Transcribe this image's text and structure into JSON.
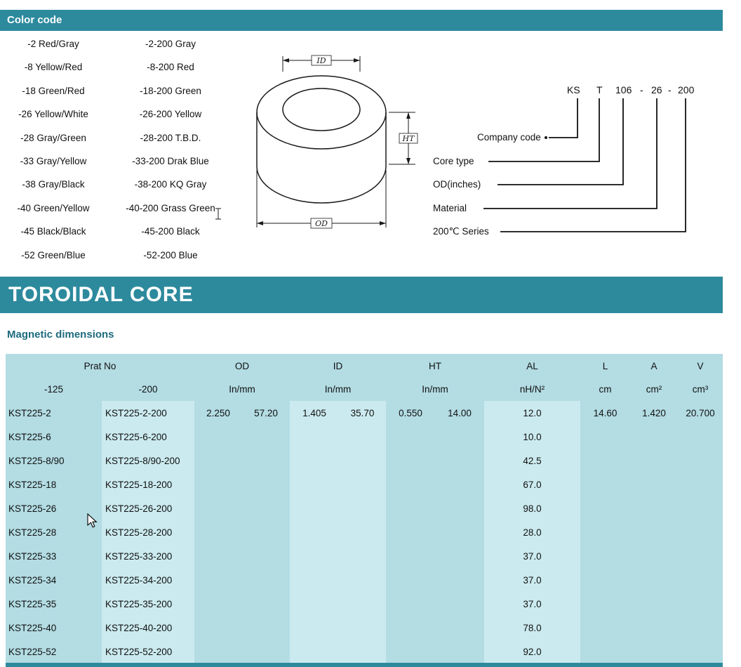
{
  "colors": {
    "accent": "#2d8a9d",
    "table_bg": "#b3dce3",
    "table_highlight": "#cbeaef",
    "heading": "#1d6b7d"
  },
  "color_code": {
    "title": "Color code",
    "left": [
      "-2 Red/Gray",
      "-8 Yellow/Red",
      "-18 Green/Red",
      "-26 Yellow/White",
      "-28 Gray/Green",
      "-33 Gray/Yellow",
      "-38 Gray/Black",
      "-40 Green/Yellow",
      "-45 Black/Black",
      "-52 Green/Blue"
    ],
    "right": [
      "-2-200 Gray",
      "-8-200 Red",
      "-18-200 Green",
      "-26-200 Yellow",
      "-28-200 T.B.D.",
      "-33-200 Drak Blue",
      "-38-200 KQ Gray",
      "-40-200 Grass Green",
      "-45-200 Black",
      "-52-200 Blue"
    ]
  },
  "toroid_diagram": {
    "id_label": "ID",
    "ht_label": "HT",
    "od_label": "OD"
  },
  "part_code": {
    "code": [
      "KS",
      "T",
      "106",
      "-",
      "26",
      "-",
      "200"
    ],
    "labels": [
      "Company code",
      "Core type",
      "OD(inches)",
      "Material",
      "200℃ Series"
    ]
  },
  "banner_title": "TOROIDAL CORE",
  "section_title": "Magnetic dimensions",
  "table": {
    "header": {
      "part_no": "Prat No",
      "od": "OD",
      "id": "ID",
      "ht": "HT",
      "al": "AL",
      "l": "L",
      "a": "A",
      "v": "V",
      "sub_125": "-125",
      "sub_200": "-200",
      "in_mm": "In/mm",
      "al_unit": "nH/N²",
      "l_unit": "cm",
      "a_unit": "cm²",
      "v_unit": "cm³"
    },
    "rows": [
      {
        "p125": "KST225-2",
        "p200": "KST225-2-200",
        "od_in": "2.250",
        "od_mm": "57.20",
        "id_in": "1.405",
        "id_mm": "35.70",
        "ht_in": "0.550",
        "ht_mm": "14.00",
        "al": "12.0",
        "l": "14.60",
        "a": "1.420",
        "v": "20.700"
      },
      {
        "p125": "KST225-6",
        "p200": "KST225-6-200",
        "al": "10.0"
      },
      {
        "p125": "KST225-8/90",
        "p200": "KST225-8/90-200",
        "al": "42.5"
      },
      {
        "p125": "KST225-18",
        "p200": "KST225-18-200",
        "al": "67.0"
      },
      {
        "p125": "KST225-26",
        "p200": "KST225-26-200",
        "al": "98.0"
      },
      {
        "p125": "KST225-28",
        "p200": "KST225-28-200",
        "al": "28.0"
      },
      {
        "p125": "KST225-33",
        "p200": "KST225-33-200",
        "al": "37.0"
      },
      {
        "p125": "KST225-34",
        "p200": "KST225-34-200",
        "al": "37.0"
      },
      {
        "p125": "KST225-35",
        "p200": "KST225-35-200",
        "al": "37.0"
      },
      {
        "p125": "KST225-40",
        "p200": "KST225-40-200",
        "al": "78.0"
      },
      {
        "p125": "KST225-52",
        "p200": "KST225-52-200",
        "al": "92.0"
      }
    ]
  }
}
